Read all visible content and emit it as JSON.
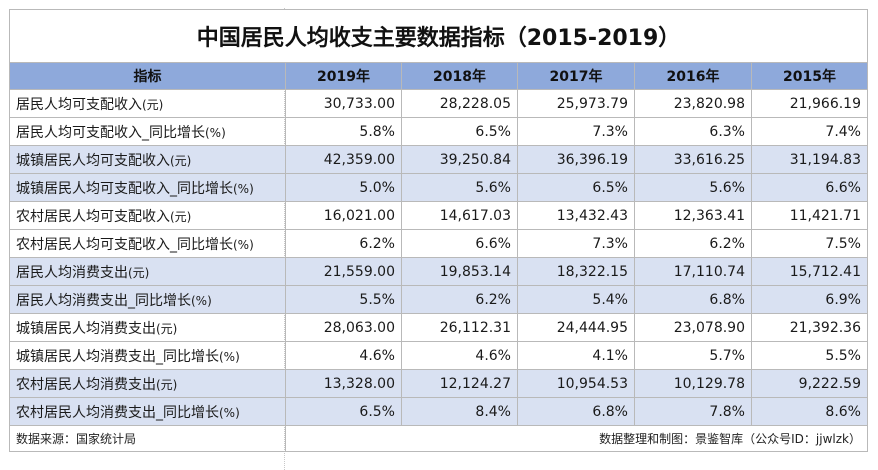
{
  "title": "中国居民人均收支主要数据指标（2015-2019）",
  "header": {
    "indicator": "指标",
    "years": [
      "2019年",
      "2018年",
      "2017年",
      "2016年",
      "2015年"
    ]
  },
  "rows": [
    {
      "label": "居民人均可支配收入",
      "unit": "(元)",
      "values": [
        "30,733.00",
        "28,228.05",
        "25,973.79",
        "23,820.98",
        "21,966.19"
      ]
    },
    {
      "label": "居民人均可支配收入_同比增长",
      "unit": "(%)",
      "values": [
        "5.8%",
        "6.5%",
        "7.3%",
        "6.3%",
        "7.4%"
      ]
    },
    {
      "label": "城镇居民人均可支配收入",
      "unit": "(元)",
      "values": [
        "42,359.00",
        "39,250.84",
        "36,396.19",
        "33,616.25",
        "31,194.83"
      ]
    },
    {
      "label": "城镇居民人均可支配收入_同比增长",
      "unit": "(%)",
      "values": [
        "5.0%",
        "5.6%",
        "6.5%",
        "5.6%",
        "6.6%"
      ]
    },
    {
      "label": "农村居民人均可支配收入",
      "unit": "(元)",
      "values": [
        "16,021.00",
        "14,617.03",
        "13,432.43",
        "12,363.41",
        "11,421.71"
      ]
    },
    {
      "label": "农村居民人均可支配收入_同比增长",
      "unit": "(%)",
      "values": [
        "6.2%",
        "6.6%",
        "7.3%",
        "6.2%",
        "7.5%"
      ]
    },
    {
      "label": "居民人均消费支出",
      "unit": "(元)",
      "values": [
        "21,559.00",
        "19,853.14",
        "18,322.15",
        "17,110.74",
        "15,712.41"
      ]
    },
    {
      "label": "居民人均消费支出_同比增长",
      "unit": "(%)",
      "values": [
        "5.5%",
        "6.2%",
        "5.4%",
        "6.8%",
        "6.9%"
      ]
    },
    {
      "label": "城镇居民人均消费支出",
      "unit": "(元)",
      "values": [
        "28,063.00",
        "26,112.31",
        "24,444.95",
        "23,078.90",
        "21,392.36"
      ]
    },
    {
      "label": "城镇居民人均消费支出_同比增长",
      "unit": "(%)",
      "values": [
        "4.6%",
        "4.6%",
        "4.1%",
        "5.7%",
        "5.5%"
      ]
    },
    {
      "label": "农村居民人均消费支出",
      "unit": "(元)",
      "values": [
        "13,328.00",
        "12,124.27",
        "10,954.53",
        "10,129.78",
        "9,222.59"
      ]
    },
    {
      "label": "农村居民人均消费支出_同比增长",
      "unit": "(%)",
      "values": [
        "6.5%",
        "8.4%",
        "6.8%",
        "7.8%",
        "8.6%"
      ]
    }
  ],
  "footer": {
    "source": "数据来源：国家统计局",
    "credit": "数据整理和制图：景鉴智库（公众号ID：jjwlzk）"
  },
  "colors": {
    "header_fill": "#8ea9db",
    "band_fill": "#d9e1f2"
  }
}
